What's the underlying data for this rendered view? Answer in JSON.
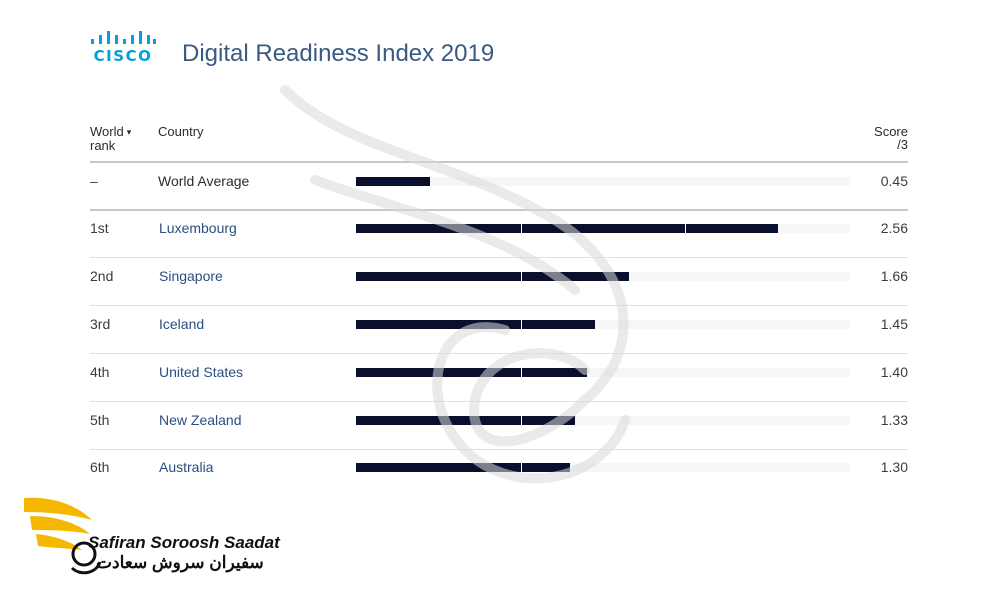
{
  "logo_text": "CISCO",
  "title": "Digital Readiness Index 2019",
  "headers": {
    "rank_line1": "World",
    "rank_line2": "rank",
    "rank_sort_icon": "caret-down-icon",
    "country": "Country",
    "score_line1": "Score",
    "score_line2": "/3"
  },
  "brand": {
    "name_en": "Safiran Soroosh Saadat",
    "name_fa": "سفیران سروش سعادت",
    "color_primary": "#f5b800",
    "color_text": "#111111"
  },
  "colors": {
    "bar": "#0b0f2e",
    "track": "#f6f6f6",
    "country_link": "#2a4f80",
    "title": "#3a5a80",
    "cisco": "#049fd9"
  },
  "chart_data": {
    "type": "bar",
    "orientation": "horizontal",
    "title": "Digital Readiness Index 2019",
    "xlim": [
      0,
      3
    ],
    "segment_step": 1,
    "rows": [
      {
        "rank": "–",
        "country": "World Average",
        "score_label": "0.45",
        "value": 0.45
      },
      {
        "rank": "1st",
        "country": "Luxembourg",
        "score_label": "2.56",
        "value": 2.56
      },
      {
        "rank": "2nd",
        "country": "Singapore",
        "score_label": "1.66",
        "value": 1.66
      },
      {
        "rank": "3rd",
        "country": "Iceland",
        "score_label": "1.45",
        "value": 1.45
      },
      {
        "rank": "4th",
        "country": "United States",
        "score_label": "1.40",
        "value": 1.4
      },
      {
        "rank": "5th",
        "country": "New Zealand",
        "score_label": "1.33",
        "value": 1.33
      },
      {
        "rank": "6th",
        "country": "Australia",
        "score_label": "1.30",
        "value": 1.3
      }
    ]
  }
}
